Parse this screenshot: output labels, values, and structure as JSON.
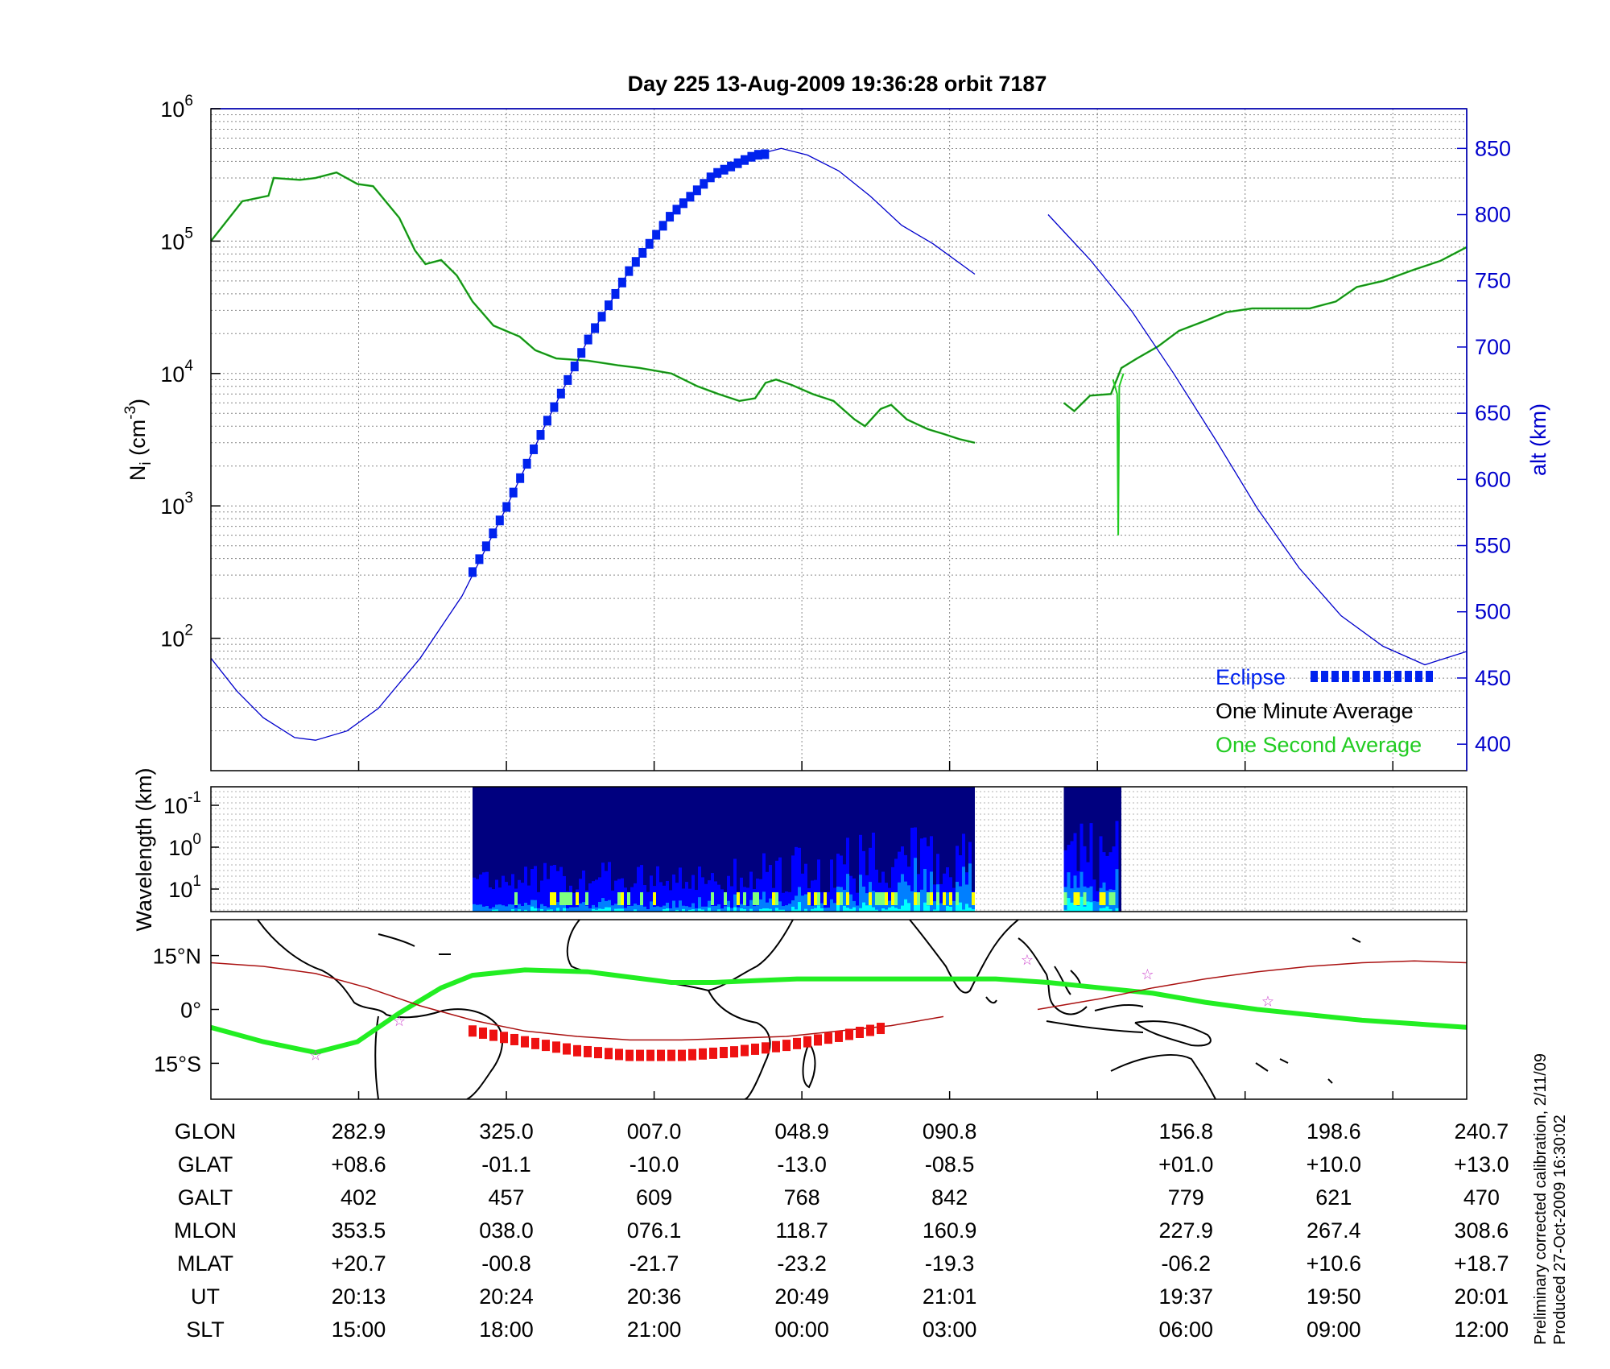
{
  "title": "Day 225  13-Aug-2009 19:36:28   orbit 7187",
  "colors": {
    "axis": "#000000",
    "alt_axis": "#0000cc",
    "density_line": "#1a7a1a",
    "one_second": "#22cc22",
    "eclipse": "#0022ee",
    "track": "#aa1111",
    "map_track": "#22ee22",
    "map_eclipse": "#ee1111",
    "stars": "#cc44cc"
  },
  "chart_data": [
    {
      "type": "line",
      "panel": "ion density and altitude",
      "ylabel": "N",
      "ylabel_sub": "i",
      "ylabel_unit_open": " (cm",
      "ylabel_unit_exp": "-3",
      "ylabel_unit_close": ")",
      "y_scale": "log",
      "ylim": [
        10,
        1000000
      ],
      "yticks_base": "10",
      "yticks_exp": [
        "2",
        "3",
        "4",
        "5",
        "6"
      ],
      "yticks_values": [
        100,
        1000,
        10000,
        100000,
        1000000
      ],
      "y2label": "alt (km)",
      "y2lim": [
        380,
        880
      ],
      "y2ticks": [
        "400",
        "450",
        "500",
        "550",
        "600",
        "650",
        "700",
        "750",
        "800",
        "850"
      ],
      "grid": true,
      "x_index_range": [
        0,
        8.5
      ],
      "series": [
        {
          "name": "One Minute Average",
          "axis": "left",
          "segments": [
            [
              [
                0,
                100000
              ],
              [
                0.3,
                200000
              ],
              [
                0.55,
                220000
              ],
              [
                0.6,
                300000
              ],
              [
                0.85,
                290000
              ],
              [
                1.0,
                300000
              ],
              [
                1.2,
                330000
              ],
              [
                1.4,
                270000
              ],
              [
                1.55,
                260000
              ],
              [
                1.8,
                150000
              ],
              [
                1.95,
                85000
              ],
              [
                2.05,
                67000
              ],
              [
                2.2,
                72000
              ],
              [
                2.35,
                55000
              ],
              [
                2.5,
                35000
              ],
              [
                2.7,
                23000
              ],
              [
                2.95,
                19000
              ],
              [
                3.1,
                15000
              ],
              [
                3.3,
                13000
              ],
              [
                3.6,
                12500
              ],
              [
                3.9,
                11500
              ],
              [
                4.1,
                11000
              ],
              [
                4.4,
                10000
              ],
              [
                4.65,
                8000
              ],
              [
                4.85,
                7000
              ],
              [
                5.05,
                6200
              ],
              [
                5.2,
                6500
              ],
              [
                5.3,
                8500
              ],
              [
                5.4,
                9000
              ],
              [
                5.55,
                8200
              ],
              [
                5.75,
                7000
              ],
              [
                5.95,
                6200
              ],
              [
                6.15,
                4500
              ],
              [
                6.25,
                4000
              ],
              [
                6.4,
                5400
              ],
              [
                6.5,
                5800
              ],
              [
                6.65,
                4500
              ],
              [
                6.85,
                3800
              ],
              [
                7.0,
                3500
              ],
              [
                7.15,
                3200
              ],
              [
                7.3,
                3000
              ]
            ],
            [
              [
                8.15,
                6000
              ],
              [
                8.25,
                5200
              ],
              [
                8.4,
                6800
              ],
              [
                8.6,
                7000
              ],
              [
                8.7,
                11000
              ],
              [
                8.85,
                13000
              ],
              [
                9.05,
                16000
              ],
              [
                9.25,
                21000
              ],
              [
                9.5,
                25000
              ],
              [
                9.7,
                29000
              ],
              [
                9.95,
                31000
              ],
              [
                10.25,
                31000
              ],
              [
                10.5,
                31000
              ],
              [
                10.75,
                35000
              ],
              [
                10.95,
                45000
              ],
              [
                11.2,
                50000
              ],
              [
                11.5,
                61000
              ],
              [
                11.75,
                71000
              ],
              [
                12.0,
                90000
              ]
            ]
          ]
        },
        {
          "name": "One Second Average",
          "axis": "left",
          "note": "sharp dip near index 8.67",
          "points": [
            [
              8.62,
              9000
            ],
            [
              8.66,
              7000
            ],
            [
              8.67,
              600
            ],
            [
              8.68,
              8000
            ],
            [
              8.72,
              10000
            ]
          ]
        },
        {
          "name": "",
          "axis": "right",
          "desc": "altitude",
          "segments": [
            [
              [
                0,
                465
              ],
              [
                0.25,
                440
              ],
              [
                0.5,
                420
              ],
              [
                0.8,
                405
              ],
              [
                1.0,
                403
              ],
              [
                1.3,
                410
              ],
              [
                1.6,
                427
              ],
              [
                2.0,
                465
              ],
              [
                2.4,
                512
              ],
              [
                2.8,
                575
              ],
              [
                3.2,
                642
              ],
              [
                3.6,
                705
              ],
              [
                4.0,
                758
              ],
              [
                4.4,
                800
              ],
              [
                4.8,
                830
              ],
              [
                5.2,
                845
              ],
              [
                5.45,
                850
              ],
              [
                5.7,
                845
              ],
              [
                6.0,
                833
              ],
              [
                6.3,
                814
              ],
              [
                6.6,
                792
              ],
              [
                6.9,
                778
              ],
              [
                7.3,
                755
              ]
            ],
            [
              [
                8.0,
                800
              ],
              [
                8.4,
                766
              ],
              [
                8.8,
                727
              ],
              [
                9.2,
                680
              ],
              [
                9.6,
                630
              ],
              [
                10.0,
                578
              ],
              [
                10.4,
                533
              ],
              [
                10.8,
                497
              ],
              [
                11.2,
                474
              ],
              [
                11.6,
                460
              ],
              [
                12.0,
                470
              ]
            ]
          ]
        },
        {
          "name": "Eclipse",
          "axis": "right",
          "range_index": [
            2.5,
            5.35
          ],
          "curve": [
            [
              2.5,
              530
            ],
            [
              2.8,
              575
            ],
            [
              3.2,
              642
            ],
            [
              3.6,
              705
            ],
            [
              4.0,
              758
            ],
            [
              4.4,
              800
            ],
            [
              4.8,
              830
            ],
            [
              5.2,
              845
            ],
            [
              5.35,
              846
            ]
          ]
        }
      ],
      "legend": {
        "placement": "bottom-right",
        "entries": [
          "Eclipse",
          "One Minute Average",
          "One Second Average"
        ]
      }
    },
    {
      "type": "heatmap",
      "panel": "spectrogram",
      "ylabel": "Wavelength (km)",
      "y_scale": "log",
      "yticks_base": "10",
      "yticks_exp": [
        "-1",
        "0",
        "1"
      ],
      "colormap": [
        "#00007f",
        "#0000ff",
        "#007fff",
        "#00ffff",
        "#7fff7f",
        "#ffff00"
      ],
      "data_ranges_index": [
        [
          2.5,
          7.3
        ],
        [
          8.15,
          8.7
        ]
      ]
    },
    {
      "type": "line",
      "panel": "map",
      "yticks": [
        "15°N",
        "0°",
        "15°S"
      ],
      "ylim": [
        -25,
        25
      ],
      "series": [
        {
          "name": "",
          "desc": "satellite ground track",
          "points": [
            [
              0,
              -5
            ],
            [
              0.5,
              -9
            ],
            [
              1.0,
              -12
            ],
            [
              1.4,
              -9
            ],
            [
              1.8,
              -1
            ],
            [
              2.2,
              6
            ],
            [
              2.5,
              9.5
            ],
            [
              3.0,
              11
            ],
            [
              3.6,
              10.5
            ],
            [
              4.0,
              9
            ],
            [
              4.4,
              7.5
            ],
            [
              4.8,
              7.5
            ],
            [
              5.2,
              8
            ],
            [
              5.6,
              8.5
            ],
            [
              6.0,
              8.5
            ],
            [
              6.5,
              8.5
            ],
            [
              7.0,
              8.5
            ],
            [
              7.5,
              8.5
            ],
            [
              8.0,
              7.5
            ],
            [
              8.5,
              6
            ],
            [
              9.0,
              4.5
            ],
            [
              9.5,
              2
            ],
            [
              10.0,
              0
            ],
            [
              10.5,
              -1.5
            ],
            [
              11.0,
              -3
            ],
            [
              11.5,
              -4
            ],
            [
              12.0,
              -5
            ]
          ]
        },
        {
          "name": "",
          "desc": "eclipse portion",
          "points": [
            [
              2.5,
              -6
            ],
            [
              3.0,
              -9
            ],
            [
              3.5,
              -11.5
            ],
            [
              4.0,
              -12.8
            ],
            [
              4.5,
              -12.8
            ],
            [
              5.0,
              -11.8
            ],
            [
              5.5,
              -10
            ],
            [
              6.0,
              -7.5
            ],
            [
              6.45,
              -5
            ]
          ]
        },
        {
          "name": "",
          "desc": "magnetic equator",
          "segments": [
            [
              [
                0,
                13
              ],
              [
                0.5,
                12
              ],
              [
                1.0,
                10
              ],
              [
                1.5,
                6
              ],
              [
                2.0,
                1
              ],
              [
                2.5,
                -3
              ],
              [
                3.0,
                -6
              ],
              [
                3.5,
                -7.5
              ],
              [
                4.0,
                -8.5
              ],
              [
                4.5,
                -8.5
              ],
              [
                5.0,
                -8
              ],
              [
                5.5,
                -7.5
              ],
              [
                6.0,
                -6
              ],
              [
                6.5,
                -4.5
              ],
              [
                7.0,
                -2
              ]
            ],
            [
              [
                7.9,
                0
              ],
              [
                8.5,
                3
              ],
              [
                9.0,
                6
              ],
              [
                9.5,
                8.5
              ],
              [
                10.0,
                10.5
              ],
              [
                10.5,
                12
              ],
              [
                11.0,
                13
              ],
              [
                11.5,
                13.5
              ],
              [
                12.0,
                13
              ]
            ]
          ]
        },
        {
          "name": "",
          "desc": "stars",
          "points": [
            [
              1.0,
              -12.5
            ],
            [
              1.8,
              -3
            ],
            [
              7.8,
              14
            ],
            [
              8.95,
              10
            ],
            [
              10.1,
              2.5
            ]
          ]
        }
      ]
    },
    {
      "type": "table",
      "panel": "orbit parameters",
      "column_index": [
        1,
        2,
        3,
        4,
        5,
        6.6,
        7.6,
        8.6
      ],
      "rows": [
        {
          "label": "GLON",
          "values": [
            "282.9",
            "325.0",
            "007.0",
            "048.9",
            "090.8",
            "156.8",
            "198.6",
            "240.7"
          ]
        },
        {
          "label": "GLAT",
          "values": [
            "+08.6",
            "-01.1",
            "-10.0",
            "-13.0",
            "-08.5",
            "+01.0",
            "+10.0",
            "+13.0"
          ]
        },
        {
          "label": "GALT",
          "values": [
            "402",
            "457",
            "609",
            "768",
            "842",
            "779",
            "621",
            "470"
          ]
        },
        {
          "label": "MLON",
          "values": [
            "353.5",
            "038.0",
            "076.1",
            "118.7",
            "160.9",
            "227.9",
            "267.4",
            "308.6"
          ]
        },
        {
          "label": "MLAT",
          "values": [
            "+20.7",
            "-00.8",
            "-21.7",
            "-23.2",
            "-19.3",
            "-06.2",
            "+10.6",
            "+18.7"
          ]
        },
        {
          "label": "UT",
          "values": [
            "20:13",
            "20:24",
            "20:36",
            "20:49",
            "21:01",
            "19:37",
            "19:50",
            "20:01"
          ]
        },
        {
          "label": "SLT",
          "values": [
            "15:00",
            "18:00",
            "21:00",
            "00:00",
            "03:00",
            "06:00",
            "09:00",
            "12:00"
          ]
        }
      ]
    }
  ],
  "notes": [
    "Preliminary corrected calibration, 2/11/09",
    "Produced 27-Oct-2009 16:30:02"
  ]
}
